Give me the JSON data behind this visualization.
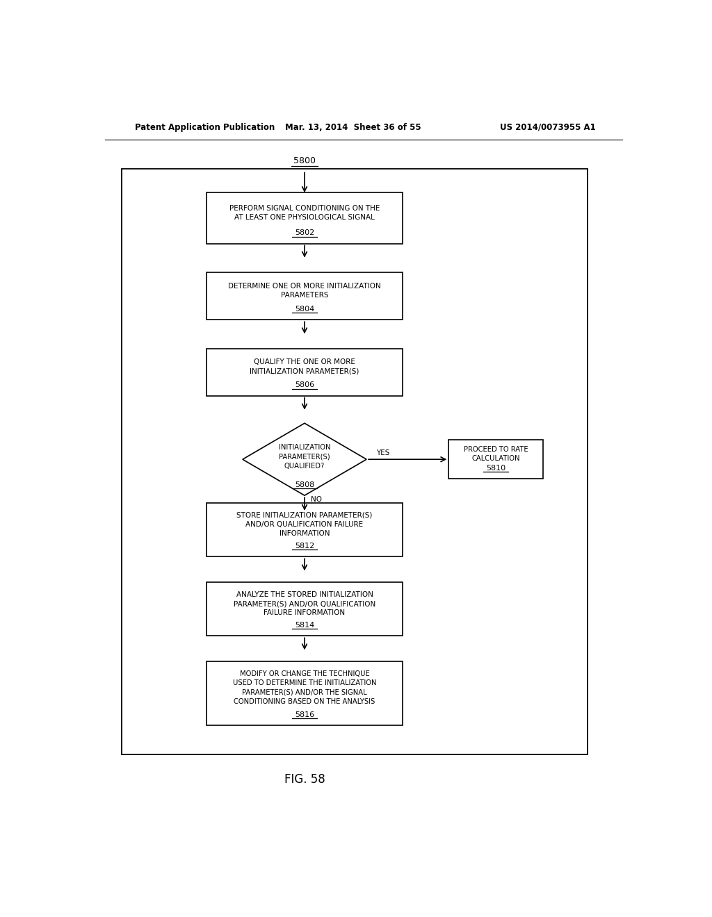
{
  "header_left": "Patent Application Publication",
  "header_mid": "Mar. 13, 2014  Sheet 36 of 55",
  "header_right": "US 2014/0073955 A1",
  "figure_label": "FIG. 58",
  "start_label": "5800",
  "bg_color": "#ffffff",
  "box_color": "#ffffff",
  "box_edge": "#000000",
  "text_color": "#000000",
  "arrow_color": "#000000"
}
